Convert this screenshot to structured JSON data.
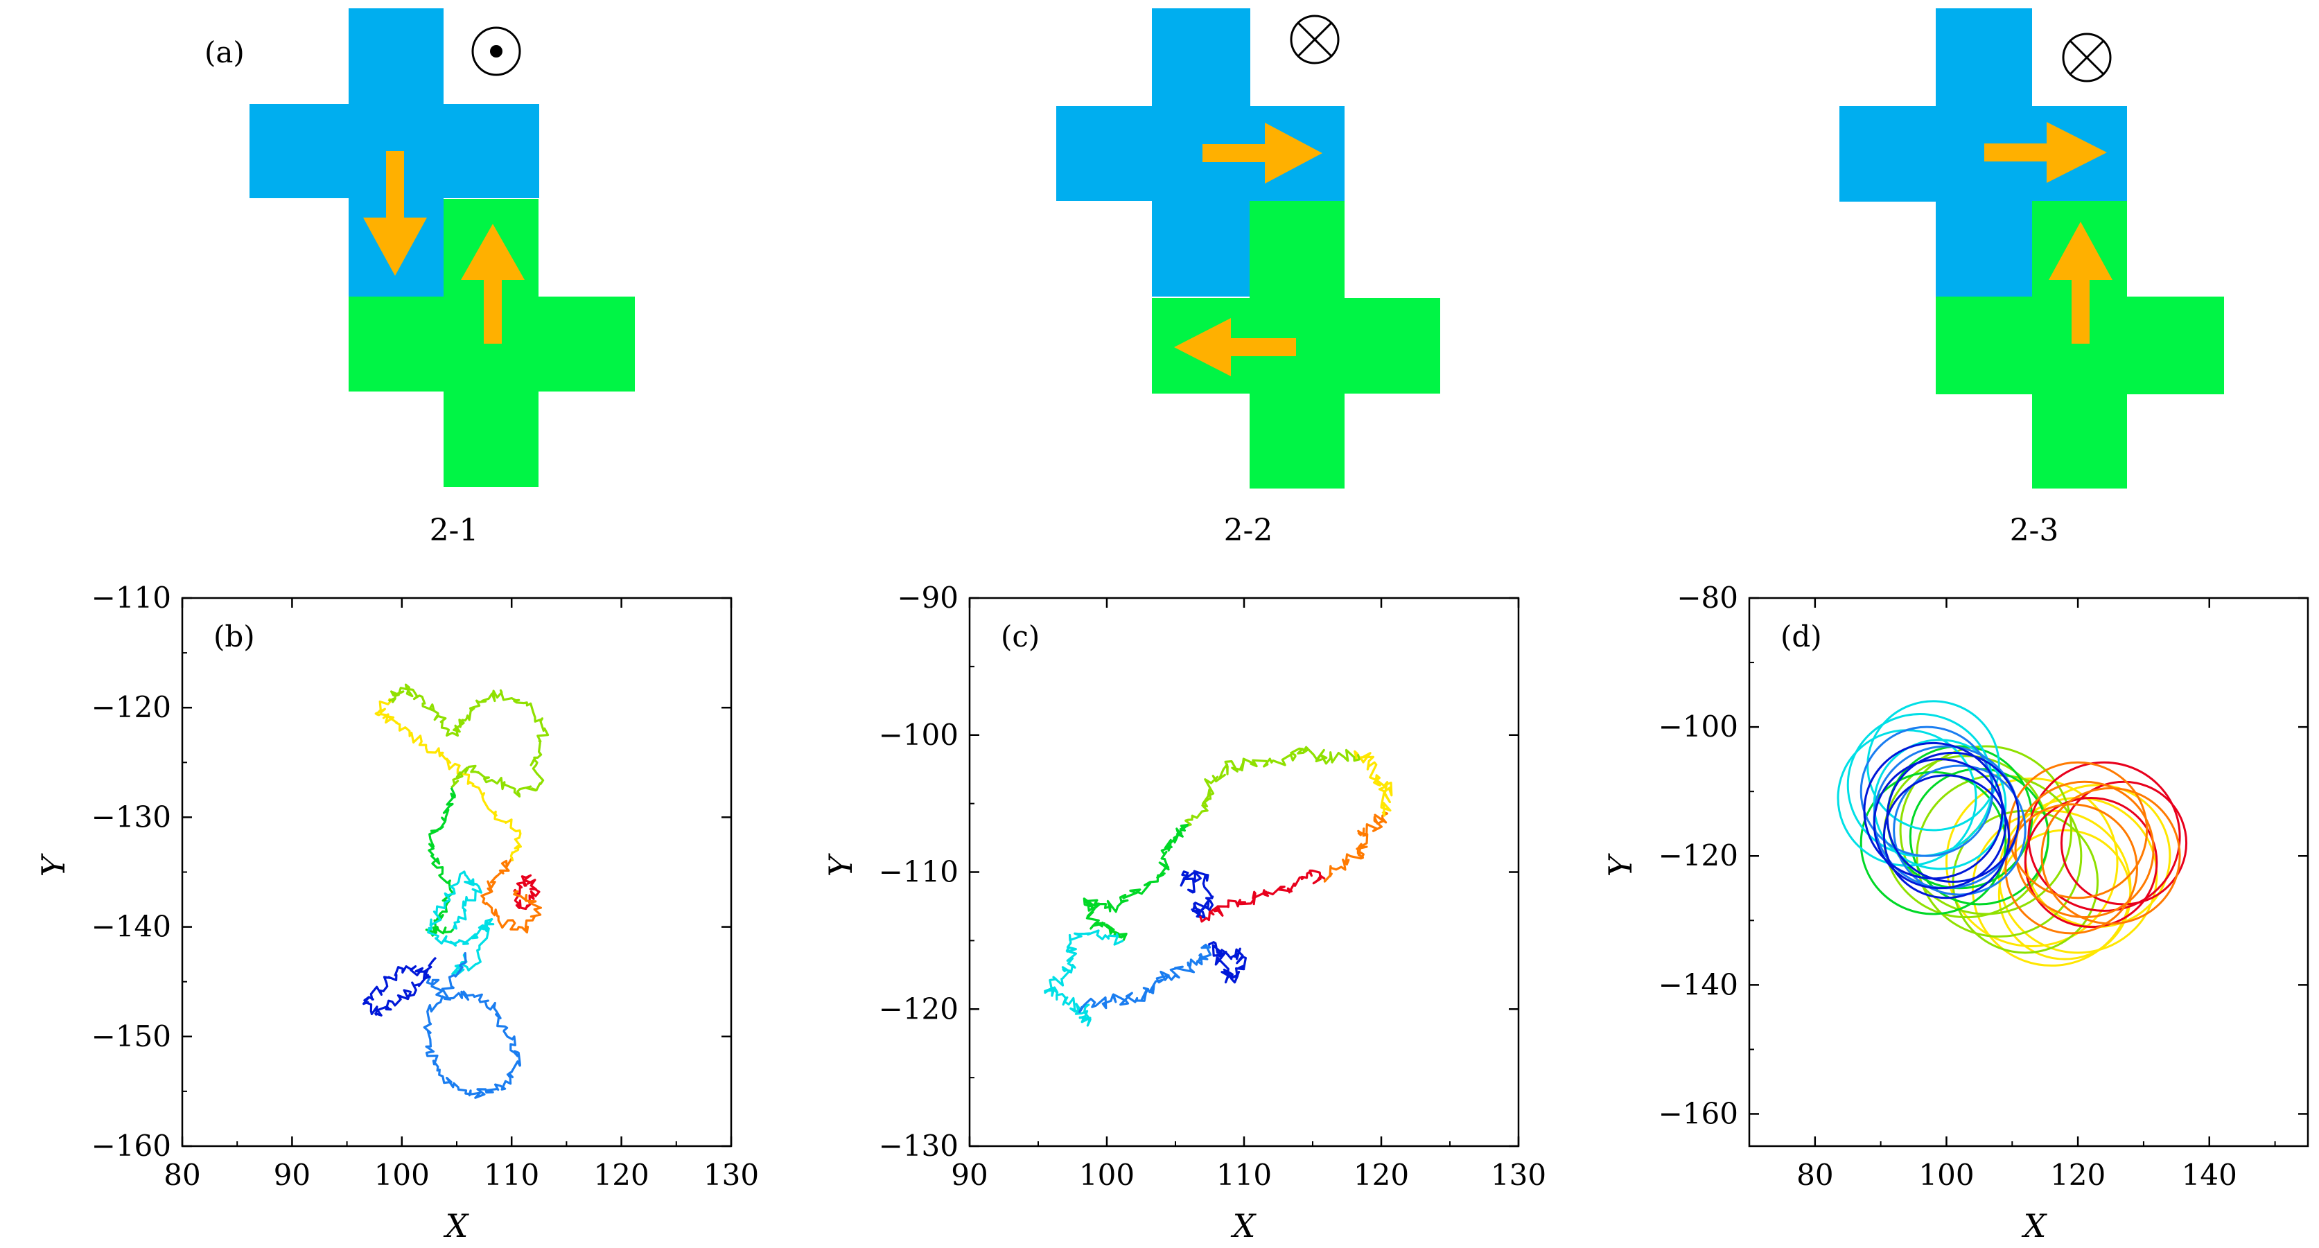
{
  "figure": {
    "colors": {
      "top_block": "#00aeef",
      "bottom_block": "#00f545",
      "arrow": "#ffb000",
      "frame": "#000000"
    }
  },
  "diagram": {
    "panel_label": "(a)",
    "configs": [
      {
        "caption": "2-1",
        "symbol": "dot-in-circle-icon",
        "arrows": [
          "down",
          "up"
        ]
      },
      {
        "caption": "2-2",
        "symbol": "cross-in-circle-icon",
        "arrows": [
          "right",
          "left"
        ]
      },
      {
        "caption": "2-3",
        "symbol": "cross-in-circle-icon",
        "arrows": [
          "right",
          "up"
        ]
      }
    ]
  },
  "chart_data": [
    {
      "panel_label": "(b)",
      "type": "line",
      "xlabel": "X",
      "ylabel": "Y",
      "xlim": [
        80,
        130
      ],
      "ylim": [
        -160,
        -110
      ],
      "xticks": [
        80,
        90,
        100,
        110,
        120,
        130
      ],
      "yticks": [
        -110,
        -120,
        -130,
        -140,
        -150,
        -160
      ],
      "color_order": "red-orange-yellow-yellowgreen-green-cyan-azure-blue",
      "series": [
        {
          "color": "#e8001c",
          "points": [
            [
              110.5,
              -137
            ],
            [
              111.3,
              -135.5
            ],
            [
              112.2,
              -136.6
            ],
            [
              111,
              -138.3
            ],
            [
              110.2,
              -136.8
            ]
          ]
        },
        {
          "color": "#ff7a00",
          "points": [
            [
              110.2,
              -136.8
            ],
            [
              112.5,
              -138.2
            ],
            [
              111.4,
              -140.5
            ],
            [
              108.8,
              -139.4
            ],
            [
              107.5,
              -137.4
            ],
            [
              108.6,
              -135.4
            ],
            [
              110.1,
              -134
            ]
          ]
        },
        {
          "color": "#ffe600",
          "points": [
            [
              110.1,
              -134
            ],
            [
              110.8,
              -131.5
            ],
            [
              108.4,
              -129.7
            ],
            [
              106.2,
              -126.8
            ],
            [
              103.9,
              -124.6
            ],
            [
              101.8,
              -123.1
            ],
            [
              99.5,
              -121.4
            ],
            [
              97.7,
              -120.6
            ],
            [
              98.8,
              -119.4
            ]
          ]
        },
        {
          "color": "#8fe000",
          "points": [
            [
              98.8,
              -119.4
            ],
            [
              99.9,
              -118.2
            ],
            [
              101.6,
              -118.9
            ],
            [
              103.3,
              -120.6
            ],
            [
              104.6,
              -122.3
            ],
            [
              105.9,
              -121
            ],
            [
              107,
              -119.5
            ],
            [
              109.1,
              -118.6
            ],
            [
              111.4,
              -119.8
            ],
            [
              113,
              -121.9
            ],
            [
              112.1,
              -124.7
            ],
            [
              112.6,
              -126.9
            ],
            [
              110.7,
              -127.9
            ],
            [
              108.2,
              -126.6
            ],
            [
              106.1,
              -125.4
            ],
            [
              104.5,
              -127.3
            ]
          ]
        },
        {
          "color": "#00d826",
          "points": [
            [
              104.5,
              -127.3
            ],
            [
              104,
              -130
            ],
            [
              102.6,
              -132
            ],
            [
              103.2,
              -134.6
            ],
            [
              104.4,
              -136.6
            ],
            [
              103.5,
              -138.8
            ],
            [
              102.6,
              -140.4
            ],
            [
              104.7,
              -140.2
            ]
          ]
        },
        {
          "color": "#00dfe6",
          "points": [
            [
              104.7,
              -140.2
            ],
            [
              105.8,
              -138.5
            ],
            [
              107,
              -136.3
            ],
            [
              105.3,
              -135.2
            ],
            [
              103.9,
              -137.8
            ],
            [
              102.4,
              -140.5
            ],
            [
              104.9,
              -141.7
            ],
            [
              106.9,
              -140.6
            ],
            [
              108.2,
              -139.3
            ],
            [
              106.8,
              -143.4
            ],
            [
              104.6,
              -144.3
            ],
            [
              105.7,
              -142.5
            ]
          ]
        },
        {
          "color": "#1a7df0",
          "points": [
            [
              105.7,
              -142.5
            ],
            [
              104.5,
              -145.4
            ],
            [
              102.4,
              -148.1
            ],
            [
              102.5,
              -151.1
            ],
            [
              103.4,
              -153.5
            ],
            [
              105.8,
              -155.2
            ],
            [
              107.7,
              -155.1
            ],
            [
              109.9,
              -154.3
            ],
            [
              110.7,
              -152
            ],
            [
              109.6,
              -150
            ],
            [
              108.4,
              -147.4
            ],
            [
              106.5,
              -146.2
            ],
            [
              103.7,
              -146.4
            ],
            [
              102.6,
              -144.5
            ]
          ]
        },
        {
          "color": "#0018d8",
          "points": [
            [
              102.6,
              -144.5
            ],
            [
              100.4,
              -143.6
            ],
            [
              98.6,
              -145.1
            ],
            [
              96.6,
              -146.7
            ],
            [
              97.6,
              -147.9
            ],
            [
              99.9,
              -146.6
            ],
            [
              101.7,
              -145.2
            ],
            [
              103.1,
              -142.8
            ]
          ]
        }
      ]
    },
    {
      "panel_label": "(c)",
      "type": "line",
      "xlabel": "X",
      "ylabel": "Y",
      "xlim": [
        90,
        130
      ],
      "ylim": [
        -130,
        -90
      ],
      "xticks": [
        90,
        100,
        110,
        120,
        130
      ],
      "yticks": [
        -90,
        -100,
        -110,
        -120,
        -130
      ],
      "color_order": "blue-red-orange-yellow-yellowgreen-green-cyan-azure-blue",
      "series": [
        {
          "color": "#0018d8",
          "points": [
            [
              106.3,
              -111.4
            ],
            [
              105.5,
              -110.2
            ],
            [
              107.3,
              -110.5
            ],
            [
              107.7,
              -112.4
            ],
            [
              106.4,
              -112.6
            ],
            [
              106.8,
              -113.2
            ]
          ]
        },
        {
          "color": "#e8001c",
          "points": [
            [
              106.8,
              -113.2
            ],
            [
              108.1,
              -112.8
            ],
            [
              109.6,
              -112.2
            ],
            [
              111.4,
              -111.6
            ],
            [
              113.2,
              -111.2
            ],
            [
              114.6,
              -110.1
            ],
            [
              115.9,
              -110.5
            ]
          ]
        },
        {
          "color": "#ff7a00",
          "points": [
            [
              115.9,
              -110.5
            ],
            [
              117.2,
              -109.1
            ],
            [
              118.7,
              -108.7
            ],
            [
              118.5,
              -107.3
            ],
            [
              119.8,
              -106.5
            ],
            [
              120.1,
              -105.6
            ]
          ]
        },
        {
          "color": "#ffe600",
          "points": [
            [
              120.1,
              -105.6
            ],
            [
              120.6,
              -104
            ],
            [
              119.7,
              -103.6
            ],
            [
              119.1,
              -101.9
            ],
            [
              118.3,
              -101.4
            ]
          ]
        },
        {
          "color": "#8fe000",
          "points": [
            [
              118.3,
              -101.4
            ],
            [
              116.3,
              -101.7
            ],
            [
              114.6,
              -101.1
            ],
            [
              112.8,
              -101.8
            ],
            [
              110.5,
              -102.1
            ],
            [
              108.8,
              -102.3
            ],
            [
              107.6,
              -103.5
            ],
            [
              107.3,
              -105.2
            ],
            [
              105.9,
              -106.6
            ]
          ]
        },
        {
          "color": "#00d826",
          "points": [
            [
              105.9,
              -106.6
            ],
            [
              104.9,
              -107.5
            ],
            [
              104.2,
              -108.7
            ],
            [
              104.2,
              -110.1
            ],
            [
              102.2,
              -111.5
            ],
            [
              100.8,
              -112.5
            ],
            [
              99.3,
              -112.3
            ],
            [
              98.5,
              -112.2
            ],
            [
              99.1,
              -113.8
            ],
            [
              100.5,
              -114.2
            ],
            [
              101.2,
              -115
            ]
          ]
        },
        {
          "color": "#00dfe6",
          "points": [
            [
              101.2,
              -115
            ],
            [
              99.3,
              -114.6
            ],
            [
              97.3,
              -114.6
            ],
            [
              97.5,
              -116.3
            ],
            [
              96.7,
              -117.8
            ],
            [
              95.5,
              -118.8
            ],
            [
              97,
              -119.2
            ],
            [
              98.1,
              -120.1
            ],
            [
              98.6,
              -121.2
            ],
            [
              98.2,
              -119.8
            ]
          ]
        },
        {
          "color": "#1a7df0",
          "points": [
            [
              98.2,
              -119.8
            ],
            [
              100.3,
              -119.4
            ],
            [
              102.2,
              -119.2
            ],
            [
              103.4,
              -118.6
            ],
            [
              104.4,
              -117.5
            ],
            [
              106.1,
              -117.1
            ],
            [
              106.9,
              -116.3
            ],
            [
              107.4,
              -115.3
            ]
          ]
        },
        {
          "color": "#0018d8",
          "points": [
            [
              107.4,
              -115.3
            ],
            [
              108.7,
              -115.9
            ],
            [
              109.9,
              -116.1
            ],
            [
              109.5,
              -117.6
            ],
            [
              108.8,
              -117.7
            ],
            [
              108.2,
              -116.1
            ]
          ]
        }
      ]
    },
    {
      "panel_label": "(d)",
      "type": "line",
      "xlabel": "X",
      "ylabel": "Y",
      "xlim": [
        70,
        155
      ],
      "ylim": [
        -165,
        -80
      ],
      "xticks": [
        80,
        100,
        120,
        140
      ],
      "yticks": [
        -80,
        -100,
        -120,
        -140,
        -160
      ],
      "shape": "overlapping closed loops",
      "series": [
        {
          "color": "#ffe600",
          "circles": [
            [
              116,
              -125,
              12
            ],
            [
              120,
              -123,
              12
            ],
            [
              113,
              -121,
              13
            ],
            [
              118,
              -126,
              10
            ],
            [
              123,
              -120,
              11
            ]
          ]
        },
        {
          "color": "#8fe000",
          "circles": [
            [
              108,
              -120,
              12.5
            ],
            [
              103,
              -117,
              12.5
            ],
            [
              112,
              -124,
              11
            ],
            [
              106,
              -116,
              13
            ]
          ]
        },
        {
          "color": "#00d826",
          "circles": [
            [
              102,
              -114,
              11
            ],
            [
              105,
              -117,
              10.5
            ],
            [
              98,
              -118,
              11
            ]
          ]
        },
        {
          "color": "#e8001c",
          "circles": [
            [
              124,
              -117,
              11.5
            ],
            [
              122,
              -121,
              10
            ],
            [
              127,
              -118,
              9.5
            ]
          ]
        },
        {
          "color": "#ff7a00",
          "circles": [
            [
              121,
              -119,
              10.5
            ],
            [
              119,
              -122,
              10
            ],
            [
              125,
              -120,
              10.5
            ],
            [
              120,
              -116,
              10.5
            ]
          ]
        },
        {
          "color": "#00dfe6",
          "circles": [
            [
              96,
              -109,
              11
            ],
            [
              99,
              -112,
              10
            ],
            [
              94,
              -111,
              10.5
            ],
            [
              98,
              -106,
              10
            ]
          ]
        },
        {
          "color": "#1a7df0",
          "circles": [
            [
              100,
              -114,
              11
            ],
            [
              97,
              -110,
              10
            ],
            [
              102,
              -116,
              10
            ]
          ]
        },
        {
          "color": "#0018d8",
          "circles": [
            [
              99,
              -115,
              10
            ],
            [
              101,
              -114,
              10
            ],
            [
              100,
              -117,
              9.5
            ],
            [
              98,
              -113,
              10.5
            ]
          ]
        }
      ]
    }
  ]
}
